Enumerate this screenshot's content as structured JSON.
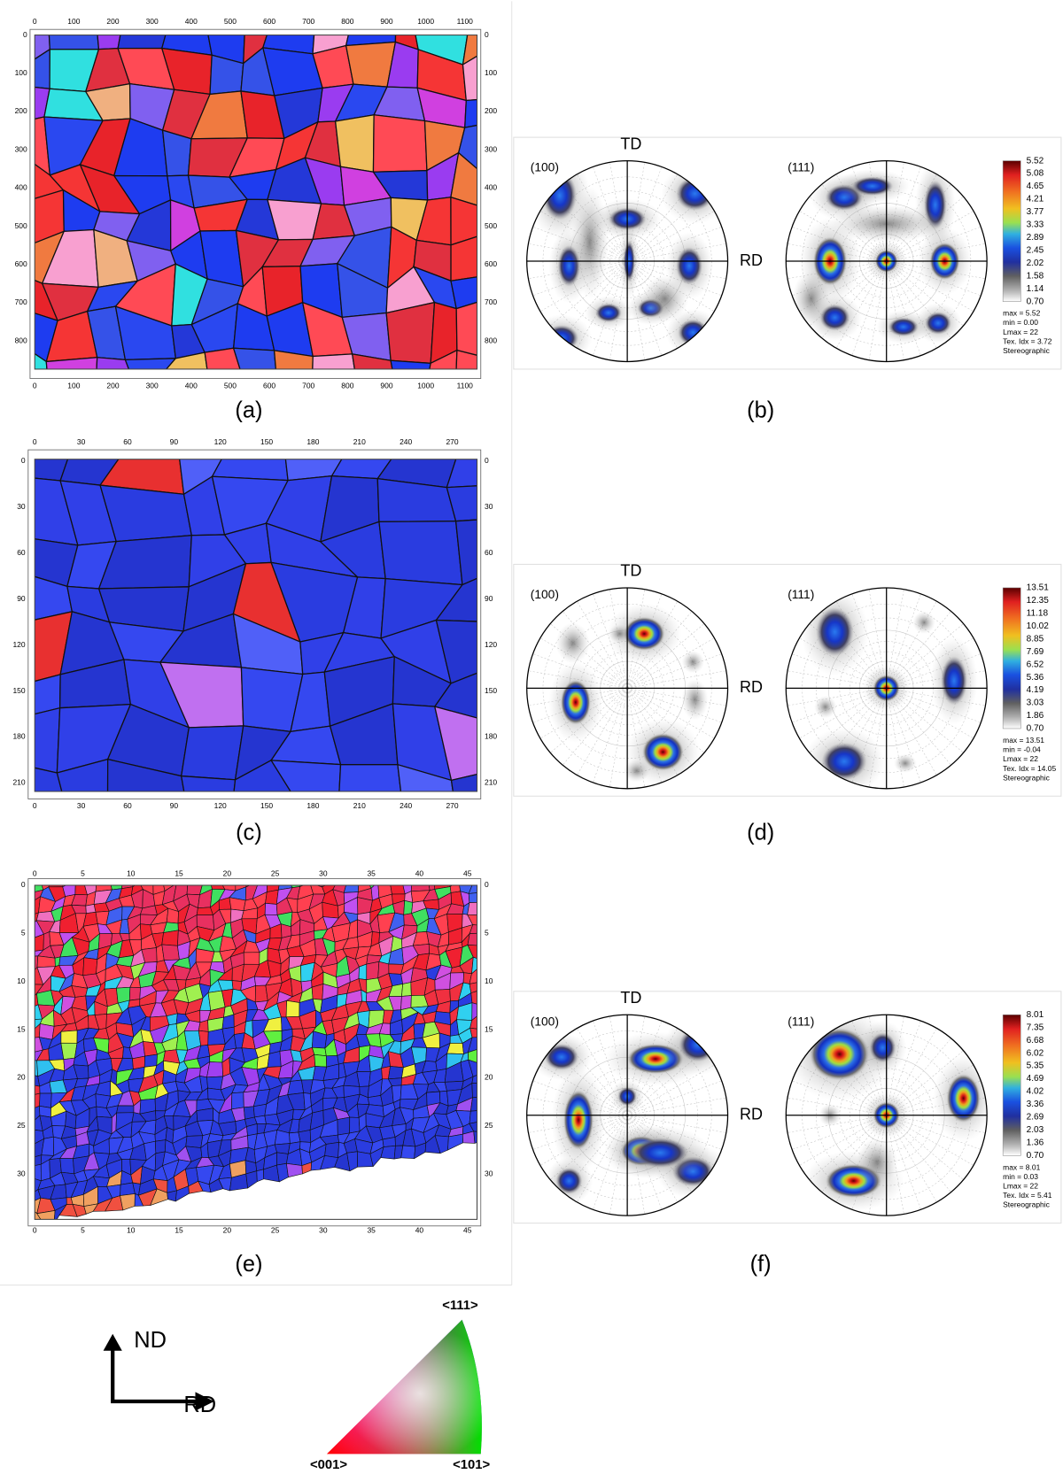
{
  "maps": [
    {
      "label": "(a)",
      "xticks": [
        "0",
        "100",
        "200",
        "300",
        "400",
        "500",
        "600",
        "700",
        "800",
        "900",
        "1000",
        "1100"
      ],
      "yticks": [
        "0",
        "100",
        "200",
        "300",
        "400",
        "500",
        "600",
        "700",
        "800"
      ]
    },
    {
      "label": "(c)",
      "xticks": [
        "0",
        "30",
        "60",
        "90",
        "120",
        "150",
        "180",
        "210",
        "240",
        "270"
      ],
      "yticks": [
        "0",
        "30",
        "60",
        "90",
        "120",
        "150",
        "180",
        "210"
      ]
    },
    {
      "label": "(e)",
      "xticks": [
        "0",
        "5",
        "10",
        "15",
        "20",
        "25",
        "30",
        "35",
        "40",
        "45"
      ],
      "yticks": [
        "0",
        "5",
        "10",
        "15",
        "20",
        "25",
        "30"
      ]
    }
  ],
  "pole_figures": [
    {
      "label": "(b)",
      "td": "TD",
      "rd": "RD",
      "left": "(100)",
      "right": "(111)",
      "levels": [
        "5.52",
        "5.08",
        "4.65",
        "4.21",
        "3.77",
        "3.33",
        "2.89",
        "2.45",
        "2.02",
        "1.58",
        "1.14",
        "0.70"
      ],
      "stats": [
        "max = 5.52",
        "min = 0.00",
        "Lmax = 22",
        "Tex. Idx = 3.72",
        "Stereographic"
      ]
    },
    {
      "label": "(d)",
      "td": "TD",
      "rd": "RD",
      "left": "(100)",
      "right": "(111)",
      "levels": [
        "13.51",
        "12.35",
        "11.18",
        "10.02",
        "8.85",
        "7.69",
        "6.52",
        "5.36",
        "4.19",
        "3.03",
        "1.86",
        "0.70"
      ],
      "stats": [
        "max = 13.51",
        "min = -0.04",
        "Lmax = 22",
        "Tex. Idx = 14.05",
        "Stereographic"
      ]
    },
    {
      "label": "(f)",
      "td": "TD",
      "rd": "RD",
      "left": "(100)",
      "right": "(111)",
      "levels": [
        "8.01",
        "7.35",
        "6.68",
        "6.02",
        "5.35",
        "4.69",
        "4.02",
        "3.36",
        "2.69",
        "2.03",
        "1.36",
        "0.70"
      ],
      "stats": [
        "max = 8.01",
        "min = 0.03",
        "Lmax = 22",
        "Tex. Idx = 5.41",
        "Stereographic"
      ]
    }
  ],
  "legend": {
    "nd": "ND",
    "rd": "RD",
    "ipf_001": "<001>",
    "ipf_101": "<101>",
    "ipf_111": "<111>"
  }
}
